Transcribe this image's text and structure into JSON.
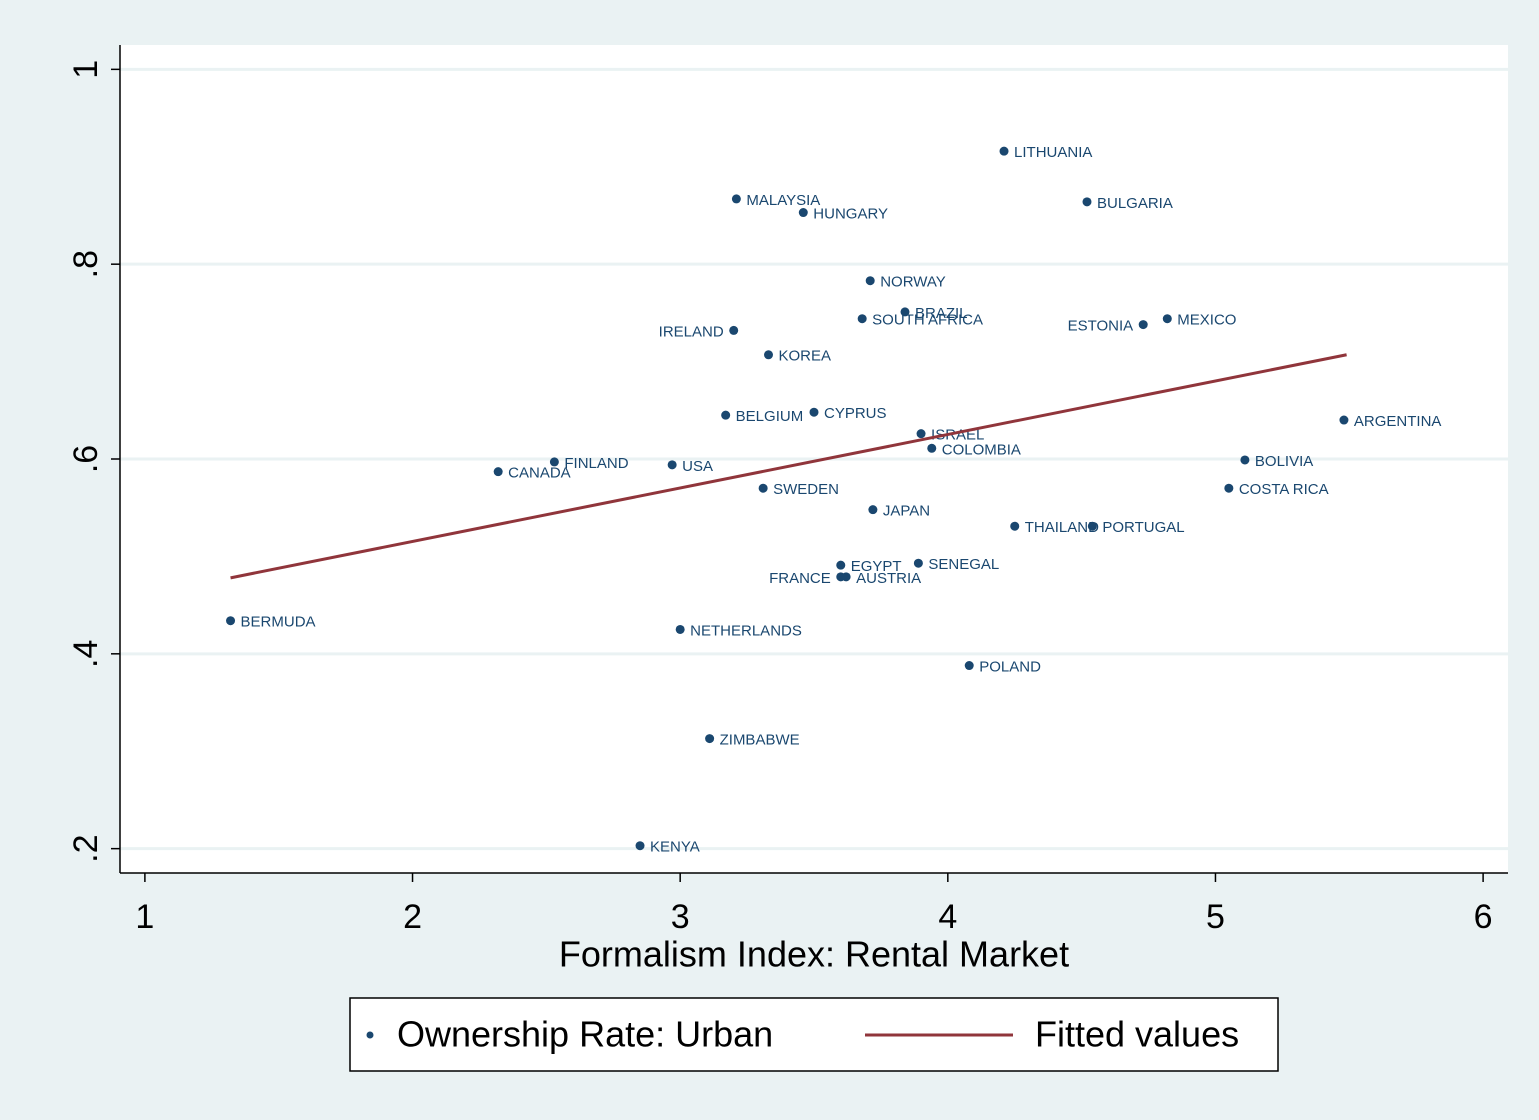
{
  "chart_data": {
    "type": "scatter",
    "xlabel": "Formalism Index: Rental Market",
    "xlim": [
      0.907,
      6.093
    ],
    "ylim": [
      0.175,
      1.025
    ],
    "xticks": [
      1,
      2,
      3,
      4,
      5,
      6
    ],
    "yticks": [
      {
        "value": 0.2,
        "label": ".2"
      },
      {
        "value": 0.4,
        "label": ".4"
      },
      {
        "value": 0.6,
        "label": ".6"
      },
      {
        "value": 0.8,
        "label": ".8"
      },
      {
        "value": 1,
        "label": "1"
      }
    ],
    "grid": true,
    "series": [
      {
        "name": "Ownership Rate: Urban",
        "type": "scatter",
        "color": "#1a476f",
        "labels": [
          "LITHUANIA",
          "MALAYSIA",
          "HUNGARY",
          "BULGARIA",
          "NORWAY",
          "BRAZIL",
          "SOUTH AFRICA",
          "ESTONIA",
          "MEXICO",
          "IRELAND",
          "KOREA",
          "BELGIUM",
          "CYPRUS",
          "ARGENTINA",
          "ISRAEL",
          "COLOMBIA",
          "FINLAND",
          "CANADA",
          "USA",
          "BOLIVIA",
          "SWEDEN",
          "COSTA RICA",
          "JAPAN",
          "THAILAND",
          "PORTUGAL",
          "EGYPT",
          "SENEGAL",
          "FRANCE",
          "AUSTRIA",
          "BERMUDA",
          "NETHERLANDS",
          "POLAND",
          "ZIMBABWE",
          "KENYA"
        ],
        "x": [
          4.21,
          3.21,
          3.46,
          4.52,
          3.71,
          3.84,
          3.68,
          4.73,
          4.82,
          3.2,
          3.33,
          3.17,
          3.5,
          5.48,
          3.9,
          3.94,
          2.53,
          2.32,
          2.97,
          5.11,
          3.31,
          5.05,
          3.72,
          4.25,
          4.54,
          3.6,
          3.89,
          3.6,
          3.62,
          1.32,
          3.0,
          4.08,
          3.11,
          2.85
        ],
        "values": [
          0.916,
          0.867,
          0.853,
          0.864,
          0.783,
          0.751,
          0.744,
          0.738,
          0.744,
          0.732,
          0.707,
          0.645,
          0.648,
          0.64,
          0.626,
          0.611,
          0.597,
          0.587,
          0.594,
          0.599,
          0.57,
          0.57,
          0.548,
          0.531,
          0.531,
          0.491,
          0.493,
          0.479,
          0.479,
          0.434,
          0.425,
          0.388,
          0.313,
          0.203
        ]
      },
      {
        "name": "Fitted values",
        "type": "line",
        "color": "#90353b",
        "x": [
          1.32,
          5.49
        ],
        "values": [
          0.478,
          0.707
        ]
      }
    ]
  }
}
